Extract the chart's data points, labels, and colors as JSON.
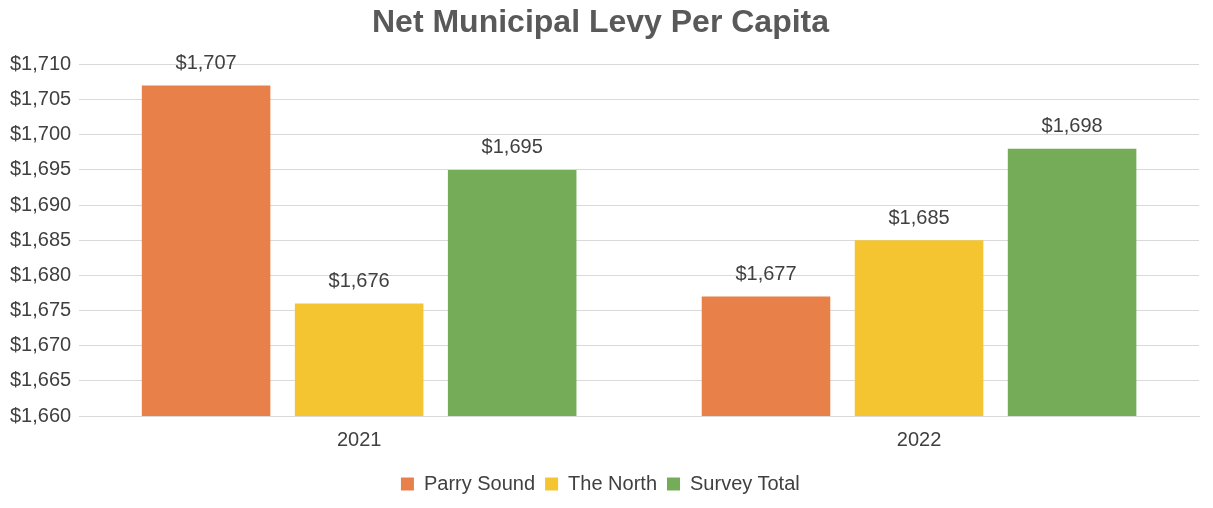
{
  "chart_data": {
    "type": "bar",
    "title": "Net Municipal Levy Per Capita",
    "categories": [
      "2021",
      "2022"
    ],
    "series": [
      {
        "name": "Parry Sound",
        "color": "#e8804a",
        "values": [
          1707,
          1677
        ],
        "value_labels": [
          "$1,707",
          "$1,677"
        ]
      },
      {
        "name": "The North",
        "color": "#f5c431",
        "values": [
          1676,
          1685
        ],
        "value_labels": [
          "$1,676",
          "$1,685"
        ]
      },
      {
        "name": "Survey Total",
        "color": "#74ac57",
        "values": [
          1695,
          1698
        ],
        "value_labels": [
          "$1,695",
          "$1,698"
        ]
      }
    ],
    "ylim": [
      1660,
      1710
    ],
    "yticks": [
      {
        "value": 1660,
        "label": "$1,660"
      },
      {
        "value": 1665,
        "label": "$1,665"
      },
      {
        "value": 1670,
        "label": "$1,670"
      },
      {
        "value": 1675,
        "label": "$1,675"
      },
      {
        "value": 1680,
        "label": "$1,680"
      },
      {
        "value": 1685,
        "label": "$1,685"
      },
      {
        "value": 1690,
        "label": "$1,690"
      },
      {
        "value": 1695,
        "label": "$1,695"
      },
      {
        "value": 1700,
        "label": "$1,700"
      },
      {
        "value": 1705,
        "label": "$1,705"
      },
      {
        "value": 1710,
        "label": "$1,710"
      }
    ],
    "grid": "y",
    "legend": "bottom"
  }
}
